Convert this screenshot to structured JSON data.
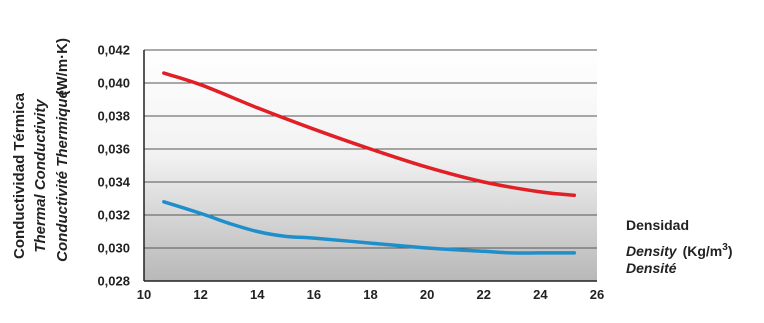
{
  "chart_data": {
    "type": "line",
    "ylabel": {
      "lines": [
        "Conductividad Térmica",
        "Thermal Conductivity",
        "Conductivité Thermique"
      ],
      "unit": "(W/m·K)"
    },
    "xlabel": {
      "line1": "Densidad",
      "line2": "Density",
      "unit_base": "(Kg/m",
      "unit_exp": "3",
      "unit_close": ")",
      "line3": "Densité"
    },
    "xlim": [
      10,
      26
    ],
    "ylim": [
      0.028,
      0.042
    ],
    "x_ticks": [
      10,
      12,
      14,
      16,
      18,
      20,
      22,
      24,
      26
    ],
    "x_tick_labels": [
      "10",
      "12",
      "14",
      "16",
      "18",
      "20",
      "22",
      "24",
      "26"
    ],
    "y_ticks": [
      0.028,
      0.03,
      0.032,
      0.034,
      0.036,
      0.038,
      0.04,
      0.042
    ],
    "y_tick_labels": [
      "0,028",
      "0,030",
      "0,032",
      "0,034",
      "0,036",
      "0,038",
      "0,040",
      "0,042"
    ],
    "grid": true,
    "series": [
      {
        "color": "#e01f26",
        "x": [
          10.7,
          12,
          14,
          16,
          18,
          20,
          22,
          24,
          25.2
        ],
        "y": [
          0.0406,
          0.0399,
          0.0385,
          0.0372,
          0.036,
          0.0349,
          0.034,
          0.0334,
          0.0332
        ]
      },
      {
        "color": "#1f8fcc",
        "x": [
          10.7,
          12,
          13,
          14,
          15,
          16,
          18,
          20,
          22,
          23,
          24,
          25.2
        ],
        "y": [
          0.0328,
          0.0321,
          0.0315,
          0.031,
          0.0307,
          0.0306,
          0.0303,
          0.03,
          0.0298,
          0.0297,
          0.0297,
          0.0297
        ]
      }
    ]
  }
}
